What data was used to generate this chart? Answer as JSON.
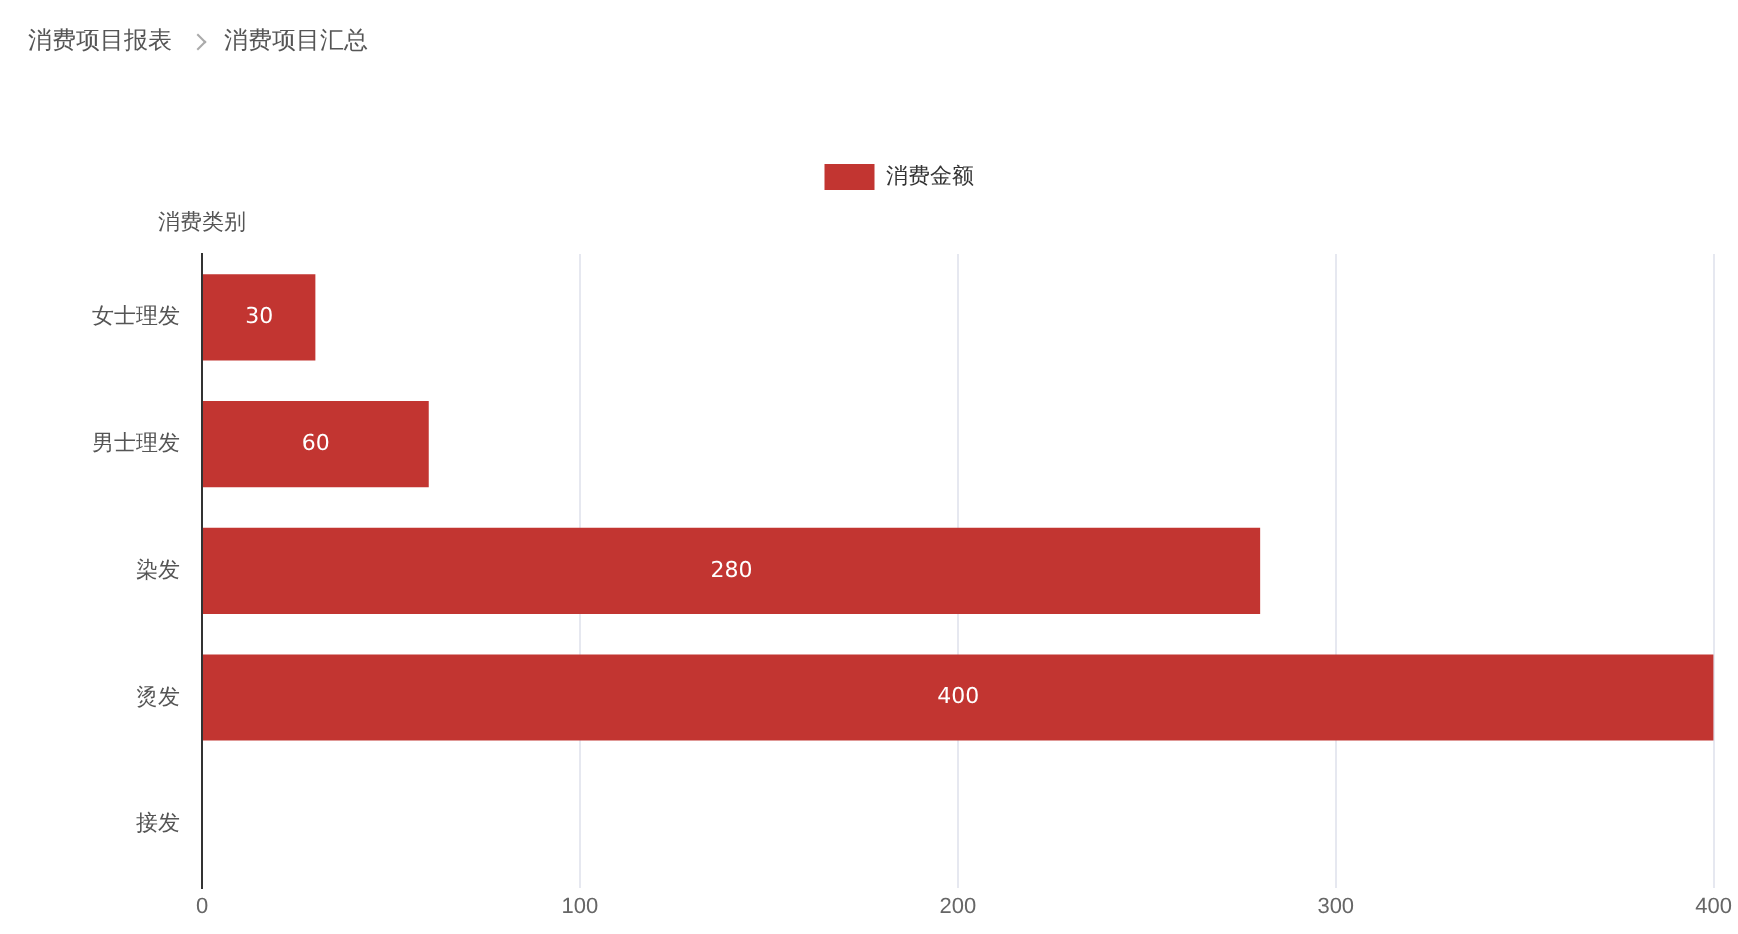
{
  "chart_data": {
    "type": "bar",
    "orientation": "horizontal",
    "ylabel": "消费类别",
    "annotations": [
      "消费项目报表",
      "消费项目汇总"
    ],
    "categories": [
      "女士理发",
      "男士理发",
      "染发",
      "烫发",
      "接发"
    ],
    "series": [
      {
        "name": "消费金额",
        "color": "#c23531",
        "values": [
          30,
          60,
          280,
          400,
          null
        ]
      }
    ],
    "xlim": [
      0,
      400
    ],
    "xticks": [
      0,
      100,
      200,
      300,
      400
    ],
    "grid": "x",
    "legend": "top",
    "data_labels": true
  }
}
